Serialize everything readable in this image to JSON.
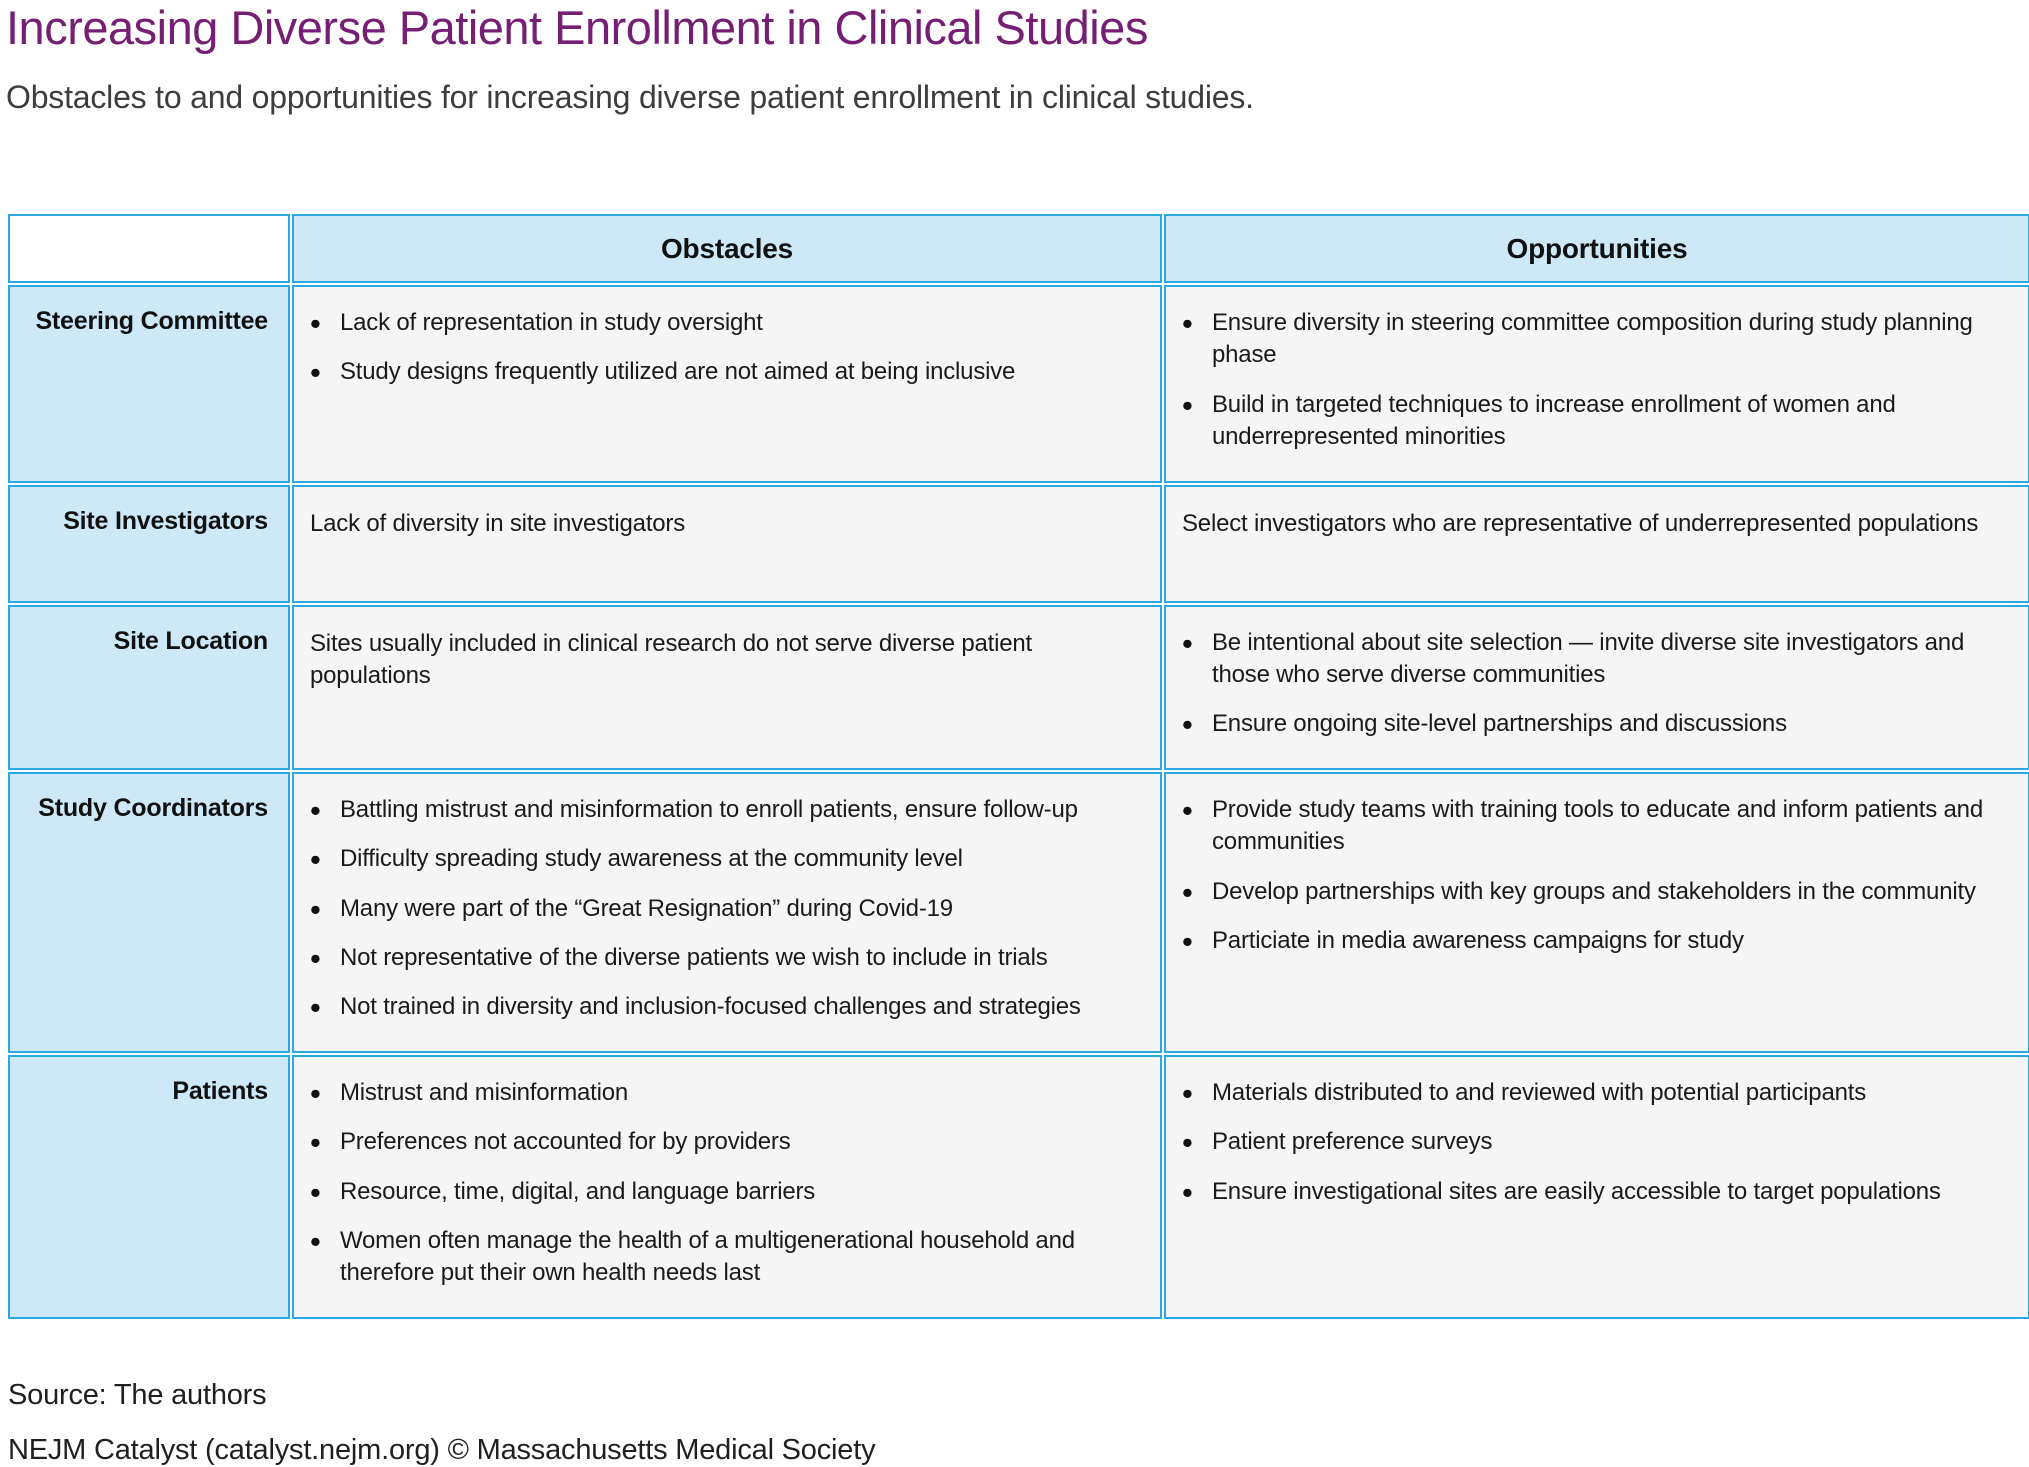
{
  "title": "Increasing Diverse Patient Enrollment in Clinical Studies",
  "subtitle": "Obstacles to and opportunities for increasing diverse patient enrollment in clinical studies.",
  "colors": {
    "title": "#751E74",
    "border": "#2AA8E0",
    "header_bg": "#CDE9F8",
    "cell_bg": "#F5F5F5"
  },
  "table": {
    "columns": [
      "Obstacles",
      "Opportunities"
    ],
    "rows": [
      {
        "label": "Steering Committee",
        "obstacles": {
          "bulleted": true,
          "items": [
            "Lack of representation in study oversight",
            "Study designs frequently utilized are not aimed at being inclusive"
          ]
        },
        "opportunities": {
          "bulleted": true,
          "items": [
            "Ensure diversity in steering committee composition during study planning phase",
            "Build in targeted techniques to increase enrollment of women and underrepresented minorities"
          ]
        }
      },
      {
        "label": "Site Investigators",
        "obstacles": {
          "bulleted": false,
          "items": [
            "Lack of diversity in site investigators"
          ]
        },
        "opportunities": {
          "bulleted": false,
          "items": [
            "Select investigators who are representative of underrepresented populations"
          ]
        }
      },
      {
        "label": "Site Location",
        "obstacles": {
          "bulleted": false,
          "items": [
            "Sites usually included in clinical research do not serve diverse patient populations"
          ]
        },
        "opportunities": {
          "bulleted": true,
          "items": [
            "Be intentional about site selection — invite diverse site investigators and those who serve diverse communities",
            "Ensure ongoing site-level partnerships and discussions"
          ]
        }
      },
      {
        "label": "Study Coordinators",
        "obstacles": {
          "bulleted": true,
          "items": [
            "Battling mistrust and misinformation to enroll patients, ensure follow-up",
            "Difficulty spreading study awareness at the community level",
            "Many were part of the “Great Resignation” during Covid-19",
            "Not representative of the diverse patients we wish to include in trials",
            "Not trained in diversity and inclusion-focused challenges and strategies"
          ]
        },
        "opportunities": {
          "bulleted": true,
          "items": [
            "Provide study teams with training tools to educate and inform patients and communities",
            "Develop partnerships with key groups and stakeholders in the community",
            "Particiate in media awareness campaigns for study"
          ]
        }
      },
      {
        "label": "Patients",
        "obstacles": {
          "bulleted": true,
          "items": [
            "Mistrust and misinformation",
            "Preferences not accounted for by providers",
            "Resource, time, digital, and language barriers",
            "Women often manage the health of a multigenerational household and therefore put their own health needs last"
          ]
        },
        "opportunities": {
          "bulleted": true,
          "items": [
            "Materials distributed to and reviewed with potential participants",
            "Patient preference surveys",
            "Ensure investigational sites are easily accessible to target populations"
          ]
        }
      }
    ]
  },
  "footer": {
    "source": "Source: The authors",
    "attribution": "NEJM Catalyst (catalyst.nejm.org) © Massachusetts Medical Society"
  }
}
